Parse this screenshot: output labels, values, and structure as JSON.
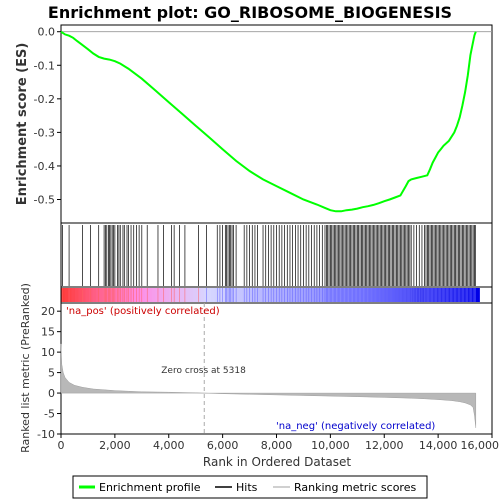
{
  "chart_data": {
    "type": "line",
    "title": "Enrichment plot: GO_RIBOSOME_BIOGENESIS",
    "panels": {
      "es": {
        "ylabel": "Enrichment score (ES)",
        "ylim": [
          -0.57,
          0.02
        ],
        "yticks": [
          0.0,
          -0.1,
          -0.2,
          -0.3,
          -0.4,
          -0.5
        ],
        "ytick_labels": [
          "0.0",
          "-0.1",
          "-0.2",
          "-0.3",
          "-0.4",
          "-0.5"
        ],
        "series": [
          {
            "name": "Enrichment profile",
            "color": "#00ff00",
            "x": [
              0,
              150,
              300,
              450,
              600,
              800,
              1000,
              1200,
              1400,
              1600,
              1800,
              2000,
              2200,
              2500,
              3000,
              3500,
              4000,
              4500,
              5000,
              5500,
              6000,
              6500,
              7000,
              7500,
              8000,
              8500,
              9000,
              9500,
              9800,
              10000,
              10200,
              10400,
              10600,
              10800,
              11000,
              11200,
              11400,
              11600,
              11800,
              12000,
              12200,
              12400,
              12600,
              12800,
              12900,
              13000,
              13200,
              13400,
              13600,
              13700,
              13800,
              13900,
              14000,
              14100,
              14200,
              14400,
              14600,
              14700,
              14800,
              14900,
              15000,
              15100,
              15200,
              15300,
              15350,
              15400
            ],
            "values": [
              0.0,
              -0.008,
              -0.012,
              -0.018,
              -0.028,
              -0.04,
              -0.052,
              -0.065,
              -0.075,
              -0.08,
              -0.083,
              -0.088,
              -0.095,
              -0.11,
              -0.14,
              -0.175,
              -0.21,
              -0.245,
              -0.28,
              -0.315,
              -0.35,
              -0.385,
              -0.415,
              -0.44,
              -0.46,
              -0.48,
              -0.5,
              -0.515,
              -0.525,
              -0.532,
              -0.535,
              -0.535,
              -0.532,
              -0.53,
              -0.527,
              -0.523,
              -0.52,
              -0.516,
              -0.511,
              -0.505,
              -0.5,
              -0.494,
              -0.488,
              -0.46,
              -0.445,
              -0.44,
              -0.436,
              -0.432,
              -0.428,
              -0.41,
              -0.39,
              -0.375,
              -0.36,
              -0.35,
              -0.34,
              -0.325,
              -0.3,
              -0.28,
              -0.255,
              -0.22,
              -0.18,
              -0.13,
              -0.07,
              -0.03,
              -0.01,
              0.0
            ]
          }
        ]
      },
      "hits": {
        "series_name": "Hits",
        "positions": [
          55,
          300,
          800,
          1100,
          1400,
          1600,
          1650,
          1700,
          1760,
          1800,
          1850,
          1900,
          1950,
          2000,
          2100,
          2150,
          2200,
          2300,
          2350,
          2450,
          2500,
          2600,
          2700,
          2800,
          2900,
          3000,
          3200,
          3600,
          3800,
          4100,
          4200,
          4400,
          4600,
          5100,
          5400,
          5800,
          5900,
          6000,
          6100,
          6150,
          6200,
          6250,
          6300,
          6350,
          6400,
          6500,
          6800,
          6900,
          7000,
          7100,
          7200,
          7300,
          7500,
          7600,
          7700,
          7800,
          7900,
          8000,
          8100,
          8200,
          8300,
          8400,
          8500,
          8600,
          8700,
          8800,
          8900,
          9000,
          9100,
          9200,
          9300,
          9400,
          9500,
          9600,
          9700,
          9800,
          9850,
          9900,
          9950,
          10000,
          10050,
          10100,
          10150,
          10200,
          10250,
          10300,
          10350,
          10400,
          10450,
          10500,
          10550,
          10600,
          10650,
          10700,
          10750,
          10800,
          10850,
          10900,
          10950,
          11000,
          11050,
          11100,
          11150,
          11200,
          11250,
          11300,
          11350,
          11400,
          11450,
          11500,
          11550,
          11600,
          11650,
          11700,
          11750,
          11800,
          11850,
          11900,
          11950,
          12000,
          12050,
          12100,
          12150,
          12200,
          12250,
          12300,
          12350,
          12400,
          12450,
          12500,
          12550,
          12600,
          12650,
          12700,
          12750,
          12800,
          12850,
          12900,
          12950,
          13000,
          13100,
          13200,
          13300,
          13400,
          13500,
          13550,
          13600,
          13650,
          13700,
          13750,
          13800,
          13850,
          13900,
          13950,
          14000,
          14050,
          14100,
          14150,
          14200,
          14250,
          14300,
          14350,
          14400,
          14450,
          14500,
          14550,
          14600,
          14650,
          14700,
          14750,
          14800,
          14850,
          14900,
          14950,
          15000,
          15050,
          15100,
          15150,
          15200,
          15250,
          15300,
          15350,
          15380
        ]
      },
      "rank_bar": {
        "xmax": 15400,
        "colors": [
          "#ff0000",
          "#ff80ff",
          "#d8d8ff",
          "#0000ff"
        ]
      },
      "metric": {
        "ylabel": "Ranked list metric (PreRanked)",
        "xlabel": "Rank in Ordered Dataset",
        "series_name": "Ranking metric scores",
        "ylim": [
          -10,
          22
        ],
        "yticks": [
          20,
          15,
          10,
          5,
          0,
          -5,
          -10
        ],
        "ytick_labels": [
          "20",
          "15",
          "10",
          "5",
          "0",
          "-5",
          "-10"
        ],
        "xlim": [
          0,
          16000
        ],
        "xticks": [
          0,
          2000,
          4000,
          6000,
          8000,
          10000,
          12000,
          14000,
          16000
        ],
        "xtick_labels": [
          "0",
          "2,000",
          "4,000",
          "6,000",
          "8,000",
          "10,000",
          "12,000",
          "14,000",
          "16,000"
        ],
        "x": [
          0,
          30,
          80,
          150,
          300,
          500,
          800,
          1200,
          1600,
          2000,
          2500,
          3000,
          4000,
          5000,
          5318,
          6000,
          7000,
          8000,
          9000,
          10000,
          11000,
          12000,
          13000,
          13500,
          14000,
          14500,
          14800,
          15000,
          15200,
          15300,
          15350,
          15400
        ],
        "values": [
          12,
          7,
          5,
          3.8,
          2.6,
          1.9,
          1.4,
          1.0,
          0.8,
          0.6,
          0.45,
          0.32,
          0.2,
          0.06,
          0,
          -0.15,
          -0.3,
          -0.45,
          -0.6,
          -0.75,
          -0.9,
          -1.05,
          -1.25,
          -1.4,
          -1.6,
          -1.85,
          -2.1,
          -2.4,
          -2.9,
          -3.5,
          -5.5,
          -8.5
        ],
        "zero_cross_label": "Zero cross at 5318",
        "zero_cross": 5318,
        "pos_label": "'na_pos' (positively correlated)",
        "neg_label": "'na_neg' (negatively correlated)"
      }
    },
    "legend": {
      "placement": "bottom",
      "items": [
        {
          "label": "Enrichment profile",
          "color": "#00ff00"
        },
        {
          "label": "Hits",
          "color": "#000000"
        },
        {
          "label": "Ranking metric scores",
          "color": "#c0c0c0"
        }
      ]
    }
  }
}
